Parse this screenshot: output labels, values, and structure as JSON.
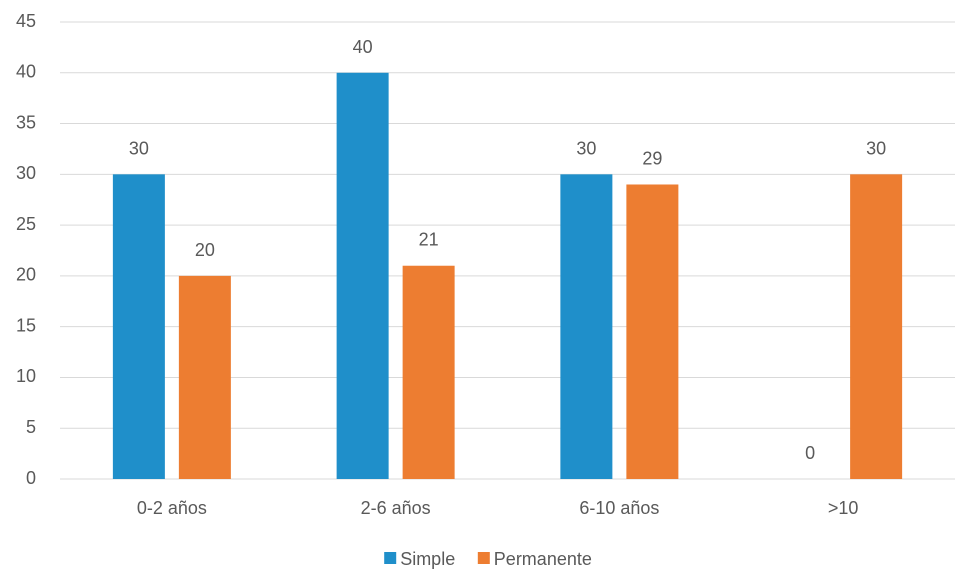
{
  "chart_data": {
    "type": "bar",
    "title": "",
    "xlabel": "",
    "ylabel": "",
    "categories": [
      "0-2 años",
      "2-6 años",
      "6-10 años",
      ">10"
    ],
    "series": [
      {
        "name": "Simple",
        "values": [
          30,
          40,
          30,
          0
        ],
        "color": "#1f8fca"
      },
      {
        "name": "Permanente",
        "values": [
          20,
          21,
          29,
          30
        ],
        "color": "#ed7d31"
      }
    ],
    "ylim": [
      0,
      45
    ],
    "yticks": [
      0,
      5,
      10,
      15,
      20,
      25,
      30,
      35,
      40,
      45
    ],
    "grid": true,
    "legend_position": "bottom-center",
    "data_labels": true
  }
}
